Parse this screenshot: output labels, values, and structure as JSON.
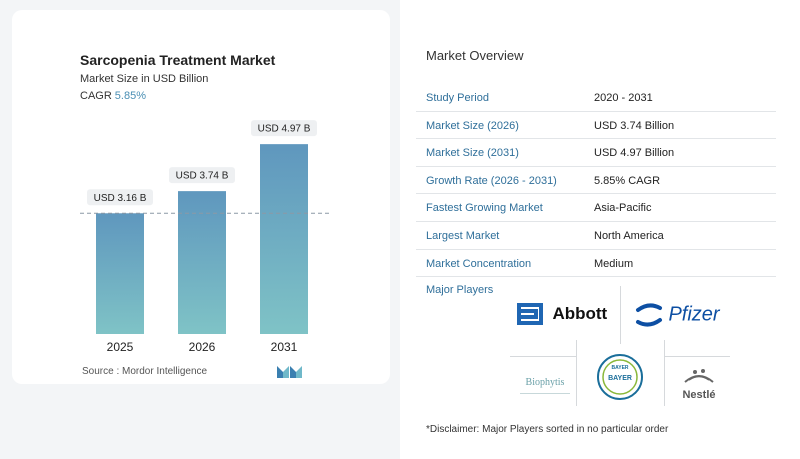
{
  "chart_data": {
    "type": "bar",
    "title": "Sarcopenia Treatment Market",
    "subtitle": "Market Size in USD Billion",
    "cagr_label": "CAGR",
    "cagr_value": "5.85%",
    "categories": [
      "2025",
      "2026",
      "2031"
    ],
    "values": [
      3.16,
      3.74,
      4.97
    ],
    "data_labels": [
      "USD 3.16 B",
      "USD 3.74 B",
      "USD 4.97 B"
    ],
    "reference_line_value": 3.16,
    "ylim": [
      0,
      5.5
    ],
    "colors": {
      "bar_top": "#5f97be",
      "bar_bottom": "#7fc3c6",
      "label_bg": "#eef0f2"
    }
  },
  "source": "Source :  Mordor Intelligence",
  "overview": {
    "title": "Market Overview",
    "rows": [
      {
        "label": "Study Period",
        "value": "2020 - 2031"
      },
      {
        "label": "Market Size (2026)",
        "value": "USD 3.74 Billion"
      },
      {
        "label": "Market Size (2031)",
        "value": "USD 4.97 Billion"
      },
      {
        "label": "Growth Rate (2026 - 2031)",
        "value": "5.85% CAGR"
      },
      {
        "label": "Fastest Growing Market",
        "value": "Asia-Pacific"
      },
      {
        "label": "Largest Market",
        "value": "North America"
      },
      {
        "label": "Market Concentration",
        "value": "Medium"
      }
    ]
  },
  "players": {
    "label": "Major Players",
    "abbott": "Abbott",
    "pfizer": "Pfizer",
    "biophytis": "Biophytis",
    "bayer_top": "BAYER",
    "bayer_side": "BAYER",
    "nestle": "Nestlé"
  },
  "disclaimer": "*Disclaimer: Major Players sorted in no particular order"
}
